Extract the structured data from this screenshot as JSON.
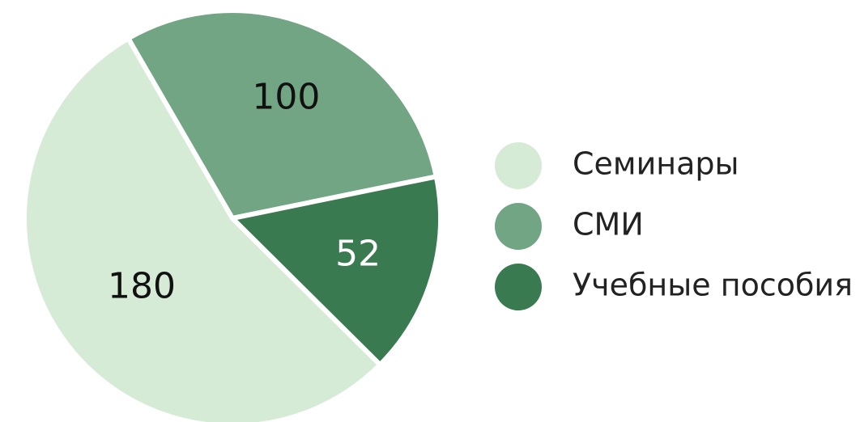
{
  "chart_data": {
    "type": "pie",
    "categories": [
      "Семинары",
      "СМИ",
      "Учебные пособия"
    ],
    "values": [
      180,
      100,
      52
    ],
    "colors": [
      "#d5ebd6",
      "#72a583",
      "#3a7a50"
    ],
    "legend": "right"
  }
}
